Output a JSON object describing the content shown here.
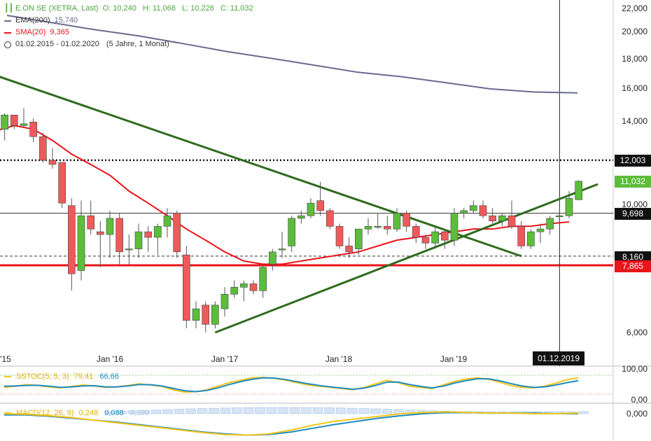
{
  "legend": {
    "title": "E.ON SE (XETRA, Last)",
    "ohlc": {
      "o": "O: 10,240",
      "h": "H: 11,068",
      "l": "L: 10,226",
      "c": "C: 11,032"
    },
    "ema": {
      "label": "EMA(200)",
      "value": "15,740",
      "color": "#6b6a8f"
    },
    "sma": {
      "label": "SMA(20)",
      "value": "9,365",
      "color": "#e8151b"
    },
    "range": {
      "label": "01.02.2015 - 01.02.2020",
      "detail": "(5 Jahre, 1 Monat)"
    }
  },
  "x_axis": {
    "labels": [
      "'15",
      "Jan '16",
      "Jan '17",
      "Jan '18",
      "Jan '19"
    ]
  },
  "y_axis": {
    "labels": [
      "22,000",
      "20,000",
      "18,000",
      "16,000",
      "14,000",
      "10,000",
      "6,000"
    ]
  },
  "price_tags": [
    {
      "value": "12,003",
      "bg": "#111111"
    },
    {
      "value": "11,032",
      "bg": "#5cbd3b"
    },
    {
      "value": "9,698",
      "bg": "#111111"
    },
    {
      "value": "8,160",
      "bg": "#111111"
    },
    {
      "value": "7,865",
      "bg": "#e8151b"
    }
  ],
  "crosshair_date": "01.12.2019",
  "sstoc": {
    "label": "SSTOC(5, 5, 3)",
    "k": "79,41",
    "d": "66,66",
    "axis": [
      "100,00",
      "0,00"
    ]
  },
  "macd": {
    "label": "MACD(12, 26, 9)",
    "macd": "0,248",
    "signal": "0,088",
    "hist": "0,160",
    "axis": "0,000"
  },
  "chart_data": {
    "type": "candlestick",
    "title": "E.ON SE (XETRA, Last)",
    "interval": "1 Monat",
    "ylim": [
      5.5,
      22.5
    ],
    "log_scale": true,
    "candles": [
      {
        "d": "2015-02",
        "o": 13.6,
        "h": 14.5,
        "l": 13.0,
        "c": 14.4
      },
      {
        "d": "2015-03",
        "o": 14.4,
        "h": 14.4,
        "l": 13.6,
        "c": 13.8
      },
      {
        "d": "2015-04",
        "o": 13.8,
        "h": 14.8,
        "l": 13.7,
        "c": 13.9
      },
      {
        "d": "2015-05",
        "o": 14.0,
        "h": 14.2,
        "l": 12.9,
        "c": 13.2
      },
      {
        "d": "2015-06",
        "o": 13.2,
        "h": 13.4,
        "l": 11.9,
        "c": 12.0
      },
      {
        "d": "2015-07",
        "o": 12.0,
        "h": 12.6,
        "l": 11.6,
        "c": 11.8
      },
      {
        "d": "2015-08",
        "o": 11.9,
        "h": 11.9,
        "l": 9.9,
        "c": 10.1
      },
      {
        "d": "2015-09",
        "o": 10.0,
        "h": 10.3,
        "l": 7.1,
        "c": 7.6
      },
      {
        "d": "2015-10",
        "o": 7.7,
        "h": 10.2,
        "l": 7.4,
        "c": 9.6
      },
      {
        "d": "2015-11",
        "o": 9.6,
        "h": 10.2,
        "l": 8.9,
        "c": 9.1
      },
      {
        "d": "2015-12",
        "o": 9.0,
        "h": 9.4,
        "l": 7.8,
        "c": 8.9
      },
      {
        "d": "2016-01",
        "o": 8.9,
        "h": 9.8,
        "l": 8.1,
        "c": 9.5
      },
      {
        "d": "2016-02",
        "o": 9.5,
        "h": 9.7,
        "l": 7.9,
        "c": 8.3
      },
      {
        "d": "2016-03",
        "o": 8.4,
        "h": 8.9,
        "l": 7.9,
        "c": 8.4
      },
      {
        "d": "2016-04",
        "o": 8.4,
        "h": 9.3,
        "l": 8.1,
        "c": 9.0
      },
      {
        "d": "2016-05",
        "o": 9.0,
        "h": 9.2,
        "l": 8.3,
        "c": 8.8
      },
      {
        "d": "2016-06",
        "o": 8.8,
        "h": 9.3,
        "l": 8.2,
        "c": 9.2
      },
      {
        "d": "2016-07",
        "o": 9.2,
        "h": 9.9,
        "l": 8.8,
        "c": 9.6
      },
      {
        "d": "2016-08",
        "o": 9.7,
        "h": 9.8,
        "l": 8.1,
        "c": 8.3
      },
      {
        "d": "2016-09",
        "o": 8.2,
        "h": 8.5,
        "l": 6.1,
        "c": 6.3
      },
      {
        "d": "2016-10",
        "o": 6.3,
        "h": 6.8,
        "l": 6.1,
        "c": 6.6
      },
      {
        "d": "2016-11",
        "o": 6.7,
        "h": 6.8,
        "l": 6.0,
        "c": 6.2
      },
      {
        "d": "2016-12",
        "o": 6.2,
        "h": 6.8,
        "l": 6.1,
        "c": 6.7
      },
      {
        "d": "2017-01",
        "o": 6.6,
        "h": 7.2,
        "l": 6.4,
        "c": 7.0
      },
      {
        "d": "2017-02",
        "o": 7.0,
        "h": 7.4,
        "l": 6.9,
        "c": 7.2
      },
      {
        "d": "2017-03",
        "o": 7.2,
        "h": 7.4,
        "l": 6.8,
        "c": 7.3
      },
      {
        "d": "2017-04",
        "o": 7.3,
        "h": 7.4,
        "l": 7.0,
        "c": 7.1
      },
      {
        "d": "2017-05",
        "o": 7.1,
        "h": 7.9,
        "l": 6.9,
        "c": 7.8
      },
      {
        "d": "2017-06",
        "o": 7.9,
        "h": 8.4,
        "l": 7.7,
        "c": 8.3
      },
      {
        "d": "2017-07",
        "o": 8.4,
        "h": 9.0,
        "l": 8.1,
        "c": 8.4
      },
      {
        "d": "2017-08",
        "o": 8.5,
        "h": 9.6,
        "l": 8.3,
        "c": 9.5
      },
      {
        "d": "2017-09",
        "o": 9.5,
        "h": 9.8,
        "l": 9.3,
        "c": 9.6
      },
      {
        "d": "2017-10",
        "o": 9.6,
        "h": 10.3,
        "l": 9.5,
        "c": 10.1
      },
      {
        "d": "2017-11",
        "o": 10.2,
        "h": 11.0,
        "l": 9.6,
        "c": 9.8
      },
      {
        "d": "2017-12",
        "o": 9.8,
        "h": 9.9,
        "l": 9.1,
        "c": 9.2
      },
      {
        "d": "2018-01",
        "o": 9.2,
        "h": 9.3,
        "l": 8.4,
        "c": 8.5
      },
      {
        "d": "2018-02",
        "o": 8.5,
        "h": 8.8,
        "l": 8.1,
        "c": 8.3
      },
      {
        "d": "2018-03",
        "o": 8.4,
        "h": 9.0,
        "l": 8.2,
        "c": 9.1
      },
      {
        "d": "2018-04",
        "o": 9.1,
        "h": 9.5,
        "l": 8.9,
        "c": 9.2
      },
      {
        "d": "2018-05",
        "o": 9.2,
        "h": 9.7,
        "l": 9.1,
        "c": 9.2
      },
      {
        "d": "2018-06",
        "o": 9.2,
        "h": 9.6,
        "l": 8.9,
        "c": 9.1
      },
      {
        "d": "2018-07",
        "o": 9.1,
        "h": 9.9,
        "l": 9.0,
        "c": 9.7
      },
      {
        "d": "2018-08",
        "o": 9.7,
        "h": 9.8,
        "l": 9.0,
        "c": 9.2
      },
      {
        "d": "2018-09",
        "o": 9.2,
        "h": 9.3,
        "l": 8.6,
        "c": 8.8
      },
      {
        "d": "2018-10",
        "o": 8.8,
        "h": 8.9,
        "l": 8.4,
        "c": 8.6
      },
      {
        "d": "2018-11",
        "o": 8.6,
        "h": 9.2,
        "l": 8.4,
        "c": 9.0
      },
      {
        "d": "2018-12",
        "o": 9.0,
        "h": 9.1,
        "l": 8.4,
        "c": 8.7
      },
      {
        "d": "2019-01",
        "o": 8.7,
        "h": 9.9,
        "l": 8.5,
        "c": 9.7
      },
      {
        "d": "2019-02",
        "o": 9.7,
        "h": 9.9,
        "l": 9.5,
        "c": 9.8
      },
      {
        "d": "2019-03",
        "o": 9.8,
        "h": 10.2,
        "l": 9.7,
        "c": 10.0
      },
      {
        "d": "2019-04",
        "o": 10.0,
        "h": 10.2,
        "l": 9.5,
        "c": 9.6
      },
      {
        "d": "2019-05",
        "o": 9.6,
        "h": 9.9,
        "l": 9.3,
        "c": 9.4
      },
      {
        "d": "2019-06",
        "o": 9.4,
        "h": 9.7,
        "l": 9.2,
        "c": 9.6
      },
      {
        "d": "2019-07",
        "o": 9.6,
        "h": 10.2,
        "l": 9.1,
        "c": 9.2
      },
      {
        "d": "2019-08",
        "o": 9.2,
        "h": 9.4,
        "l": 8.4,
        "c": 8.5
      },
      {
        "d": "2019-09",
        "o": 8.5,
        "h": 9.1,
        "l": 8.4,
        "c": 9.0
      },
      {
        "d": "2019-10",
        "o": 9.0,
        "h": 9.3,
        "l": 8.6,
        "c": 9.1
      },
      {
        "d": "2019-11",
        "o": 9.1,
        "h": 9.6,
        "l": 8.9,
        "c": 9.5
      },
      {
        "d": "2019-12",
        "o": 9.6,
        "h": 9.8,
        "l": 9.3,
        "c": 9.6
      },
      {
        "d": "2020-01",
        "o": 9.6,
        "h": 10.6,
        "l": 9.5,
        "c": 10.3
      },
      {
        "d": "2020-02",
        "o": 10.24,
        "h": 11.068,
        "l": 10.226,
        "c": 11.032
      }
    ],
    "ema200": [
      21.5,
      20.9,
      20.3,
      19.8,
      19.2,
      18.6,
      18.1,
      17.6,
      17.1,
      16.8,
      16.4,
      16.0,
      15.8,
      15.74
    ],
    "sma20": [
      13.5,
      13.8,
      13.6,
      13.0,
      12.3,
      11.8,
      11.3,
      10.6,
      10.1,
      9.6,
      9.1,
      8.7,
      8.3,
      8.0,
      7.9,
      7.9,
      8.0,
      8.1,
      8.2,
      8.3,
      8.5,
      8.7,
      8.8,
      8.9,
      9.0,
      9.1,
      9.1,
      9.2,
      9.2,
      9.3,
      9.365
    ],
    "horizontal_levels": [
      {
        "value": 12.003,
        "style": "dotted"
      },
      {
        "value": 9.698,
        "style": "solid"
      },
      {
        "value": 8.16,
        "style": "dashed"
      },
      {
        "value": 7.865,
        "style": "solid-red"
      }
    ],
    "trendlines": [
      {
        "from": [
          "2015-01",
          16.9
        ],
        "to": [
          "2019-08",
          8.16
        ]
      },
      {
        "from": [
          "2016-12",
          6.0
        ],
        "to": [
          "2020-04",
          10.9
        ]
      }
    ]
  }
}
